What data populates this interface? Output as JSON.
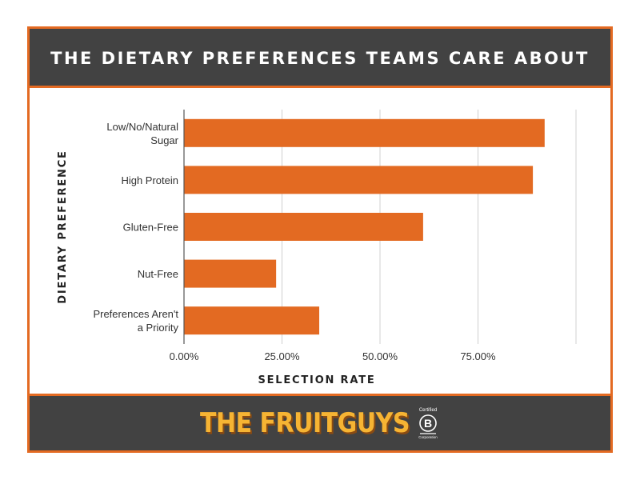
{
  "header": {
    "title": "THE DIETARY PREFERENCES TEAMS CARE ABOUT"
  },
  "footer": {
    "brand_name": "THE FRUITGUYS",
    "badge_top": "Certified",
    "badge_letter": "B",
    "badge_bottom": "Corporation"
  },
  "chart_data": {
    "type": "bar",
    "orientation": "horizontal",
    "categories": [
      [
        "Low/No/Natural",
        "Sugar"
      ],
      [
        "High Protein"
      ],
      [
        "Gluten-Free"
      ],
      [
        "Nut-Free"
      ],
      [
        "Preferences Aren't",
        "a Priority"
      ]
    ],
    "values": [
      92,
      89,
      61,
      23.5,
      34.5
    ],
    "xlim": [
      0,
      100
    ],
    "ticks": [
      0,
      25,
      50,
      75,
      100
    ],
    "tick_labels": [
      "0.00%",
      "25.00%",
      "50.00%",
      "75.00%",
      ""
    ],
    "xlabel": "SELECTION RATE",
    "ylabel": "DIETARY PREFERENCE",
    "grid": true,
    "bar_color": "#E36A22",
    "grid_color": "#d0d0d0"
  }
}
